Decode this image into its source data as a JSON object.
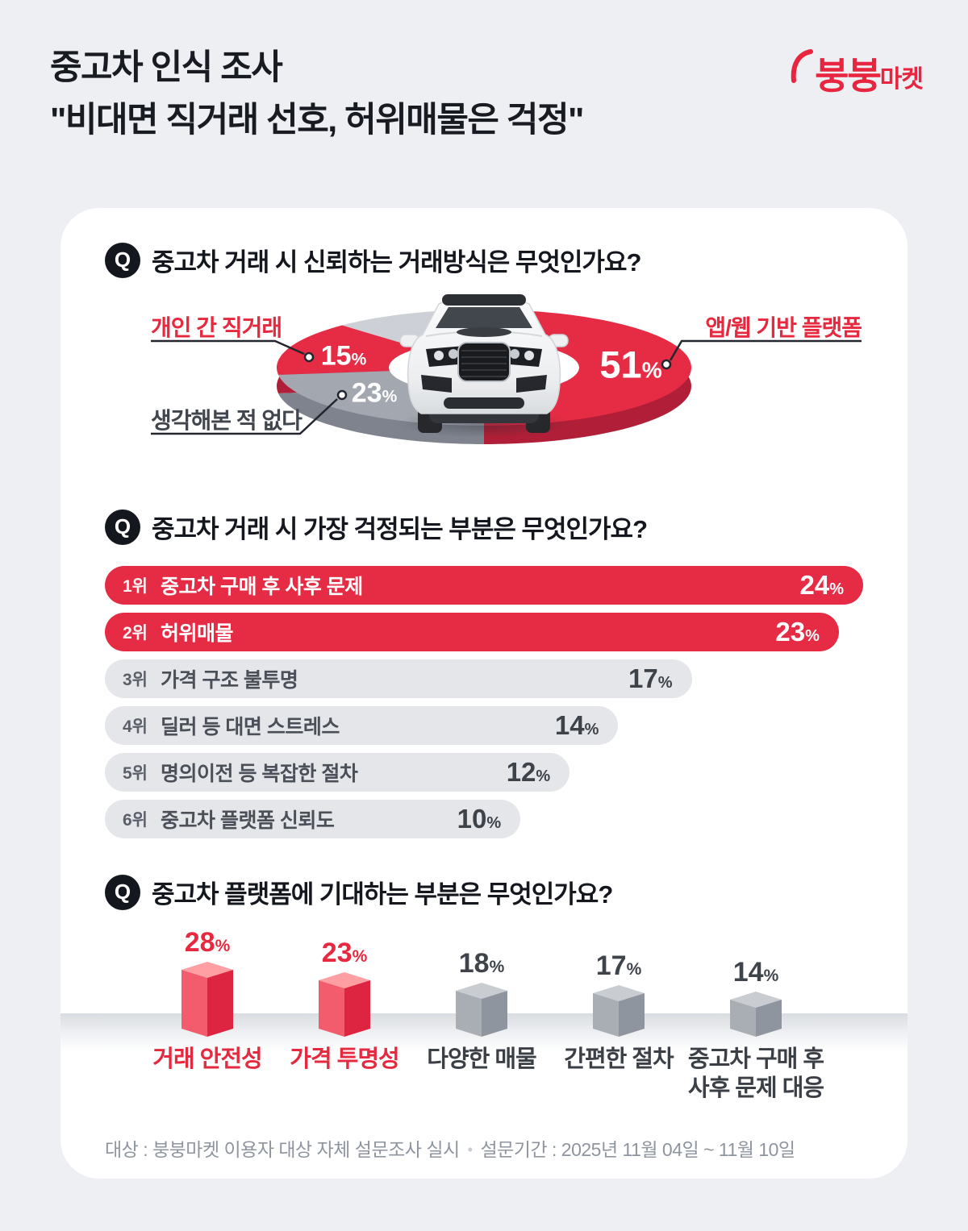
{
  "header": {
    "title_line1": "중고차 인식 조사",
    "title_line2": "\"비대면 직거래 선호, 허위매물은 걱정\"",
    "logo_bold": "붕붕",
    "logo_rest": "마켓"
  },
  "ui": {
    "q_badge": "Q"
  },
  "q1": {
    "question": "중고차 거래 시 신뢰하는 거래방식은 무엇인가요?"
  },
  "q2": {
    "question": "중고차 거래 시 가장 걱정되는 부분은 무엇인가요?"
  },
  "q3": {
    "question": "중고차 플랫폼에 기대하는 부분은 무엇인가요?"
  },
  "footer": {
    "target": "대상 : 붕붕마켓 이용자 대상 자체 설문조사 실시",
    "separator": "•",
    "period": "설문기간 : 2025년 11월 04일 ~ 11월 10일"
  },
  "chart_data": [
    {
      "type": "pie",
      "title": "중고차 거래 시 신뢰하는 거래방식은 무엇인가요?",
      "unit": "%",
      "style": "3d-donut-with-car",
      "slices": [
        {
          "label": "앱/웹 기반 플랫폼",
          "value": 51,
          "color": "#e62b45",
          "side_color": "#b01f37",
          "highlight": true
        },
        {
          "label": "",
          "value": 11,
          "color": "#cdd1d7",
          "side_color": "#aeb3bb",
          "highlight": false,
          "note": "unlabeled remainder segment"
        },
        {
          "label": "개인 간 직거래",
          "value": 15,
          "color": "#e62b45",
          "side_color": "#b01f37",
          "highlight": true
        },
        {
          "label": "생각해본 적 없다",
          "value": 23,
          "color": "#a2a7b0",
          "side_color": "#7e838d",
          "highlight": false
        }
      ]
    },
    {
      "type": "bar",
      "orientation": "horizontal",
      "title": "중고차 거래 시 가장 걱정되는 부분은 무엇인가요?",
      "unit": "%",
      "xlim": [
        0,
        24
      ],
      "items": [
        {
          "rank": "1위",
          "label": "중고차 구매 후 사후 문제",
          "value": 24,
          "highlight": true
        },
        {
          "rank": "2위",
          "label": "허위매물",
          "value": 23,
          "highlight": true
        },
        {
          "rank": "3위",
          "label": "가격 구조 불투명",
          "value": 17,
          "highlight": false
        },
        {
          "rank": "4위",
          "label": "딜러 등 대면 스트레스",
          "value": 14,
          "highlight": false
        },
        {
          "rank": "5위",
          "label": "명의이전 등 복잡한 절차",
          "value": 12,
          "highlight": false
        },
        {
          "rank": "6위",
          "label": "중고차 플랫폼 신뢰도",
          "value": 10,
          "highlight": false
        }
      ]
    },
    {
      "type": "bar",
      "variant": "3d-cube-column",
      "title": "중고차 플랫폼에 기대하는 부분은 무엇인가요?",
      "unit": "%",
      "items": [
        {
          "label": "거래 안전성",
          "value": 28,
          "highlight": true
        },
        {
          "label": "가격 투명성",
          "value": 23,
          "highlight": true
        },
        {
          "label": "다양한 매물",
          "value": 18,
          "highlight": false
        },
        {
          "label": "간편한 절차",
          "value": 17,
          "highlight": false
        },
        {
          "label": "중고차 구매 후\n사후 문제 대응",
          "value": 14,
          "highlight": false
        }
      ]
    }
  ],
  "colors": {
    "accent_red": "#e62b45",
    "label_red": "#e6293f",
    "donut_gray": "#a2a7b0",
    "donut_light_gray": "#cdd1d7",
    "bar_gray": "#e4e6ea",
    "heading": "#15171f",
    "note_gray": "#8e959f",
    "page_bg": "#edeff3",
    "card_bg": "#ffffff"
  }
}
